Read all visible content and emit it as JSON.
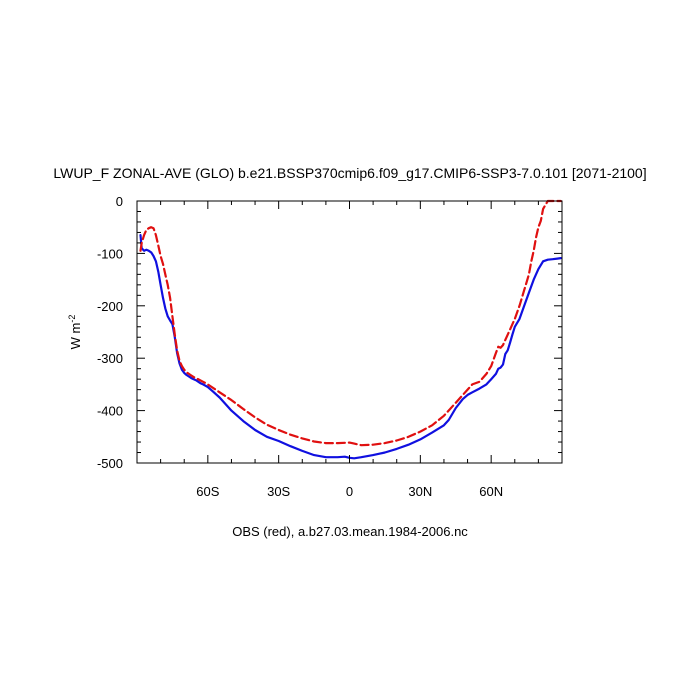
{
  "chart_data": {
    "type": "line",
    "title": "LWUP_F ZONAL-AVE (GLO) b.e21.BSSP370cmip6.f09_g17.CMIP6-SSP3-7.0.101 [2071-2100]",
    "ylabel_main": "W m",
    "ylabel_sup": "-2",
    "xlabel": "",
    "note": "OBS (red), a.b27.03.mean.1984-2006.nc",
    "xlim": [
      -90,
      90
    ],
    "ylim": [
      -500,
      0
    ],
    "xticks": [
      {
        "value": -60,
        "label": "60S"
      },
      {
        "value": -30,
        "label": "30S"
      },
      {
        "value": 0,
        "label": "0"
      },
      {
        "value": 30,
        "label": "30N"
      },
      {
        "value": 60,
        "label": "60N"
      }
    ],
    "yticks": [
      {
        "value": 0,
        "label": "0"
      },
      {
        "value": -100,
        "label": "-100"
      },
      {
        "value": -200,
        "label": "-200"
      },
      {
        "value": -300,
        "label": "-300"
      },
      {
        "value": -400,
        "label": "-400"
      },
      {
        "value": -500,
        "label": "-500"
      }
    ],
    "series": [
      {
        "color": "#1010e0",
        "dash": "solid",
        "x": [
          -88.5,
          -88,
          -87,
          -86,
          -85,
          -84,
          -83,
          -82,
          -81,
          -80,
          -79,
          -78,
          -77,
          -76,
          -75,
          -74,
          -73,
          -72,
          -71,
          -70,
          -69,
          -68,
          -67,
          -66,
          -65,
          -64,
          -63,
          -62,
          -60,
          -58,
          -55,
          -52,
          -50,
          -45,
          -40,
          -35,
          -30,
          -25,
          -20,
          -15,
          -10,
          -5,
          -2,
          0,
          2,
          5,
          10,
          15,
          20,
          25,
          30,
          35,
          40,
          42,
          45,
          48,
          50,
          52,
          55,
          58,
          60,
          62,
          63,
          64,
          65,
          66,
          67,
          68,
          69,
          70,
          72,
          74,
          76,
          78,
          80,
          82,
          84,
          86,
          88,
          89.5
        ],
        "y": [
          -65,
          -90,
          -95,
          -93,
          -95,
          -98,
          -105,
          -115,
          -135,
          -160,
          -185,
          -205,
          -220,
          -228,
          -235,
          -260,
          -290,
          -310,
          -322,
          -328,
          -332,
          -335,
          -338,
          -340,
          -342,
          -345,
          -348,
          -350,
          -355,
          -363,
          -375,
          -390,
          -400,
          -420,
          -437,
          -450,
          -458,
          -468,
          -477,
          -485,
          -489,
          -489,
          -488,
          -490,
          -491,
          -489,
          -485,
          -480,
          -473,
          -465,
          -455,
          -442,
          -428,
          -418,
          -395,
          -378,
          -370,
          -365,
          -358,
          -350,
          -340,
          -330,
          -320,
          -318,
          -312,
          -292,
          -285,
          -270,
          -255,
          -240,
          -225,
          -200,
          -175,
          -150,
          -130,
          -115,
          -112,
          -111,
          -110,
          -109
        ]
      },
      {
        "color": "#e01010",
        "dash": "dashed",
        "x": [
          -88.5,
          -88,
          -87,
          -86,
          -85,
          -84,
          -83,
          -82,
          -81,
          -80,
          -79,
          -78,
          -77,
          -76,
          -75,
          -74,
          -73,
          -72,
          -71,
          -70,
          -69,
          -68,
          -67,
          -66,
          -65,
          -62,
          -60,
          -55,
          -50,
          -45,
          -40,
          -35,
          -30,
          -25,
          -20,
          -15,
          -10,
          -5,
          0,
          2,
          5,
          10,
          15,
          20,
          25,
          30,
          35,
          40,
          45,
          50,
          52,
          55,
          58,
          60,
          62,
          63,
          64,
          65,
          66,
          68,
          70,
          72,
          74,
          75,
          76,
          77,
          78,
          79,
          80,
          81,
          82,
          84,
          86,
          88,
          89.5
        ],
        "y": [
          -95,
          -80,
          -65,
          -55,
          -52,
          -50,
          -52,
          -65,
          -85,
          -105,
          -120,
          -140,
          -160,
          -185,
          -220,
          -255,
          -285,
          -305,
          -315,
          -322,
          -327,
          -330,
          -333,
          -336,
          -338,
          -345,
          -350,
          -365,
          -380,
          -397,
          -413,
          -427,
          -437,
          -446,
          -453,
          -459,
          -462,
          -462,
          -461,
          -463,
          -466,
          -465,
          -462,
          -457,
          -450,
          -440,
          -428,
          -410,
          -385,
          -360,
          -350,
          -345,
          -330,
          -315,
          -290,
          -278,
          -280,
          -275,
          -265,
          -245,
          -225,
          -200,
          -170,
          -155,
          -140,
          -115,
          -95,
          -70,
          -50,
          -38,
          -15,
          0,
          0,
          0,
          0
        ]
      }
    ]
  }
}
